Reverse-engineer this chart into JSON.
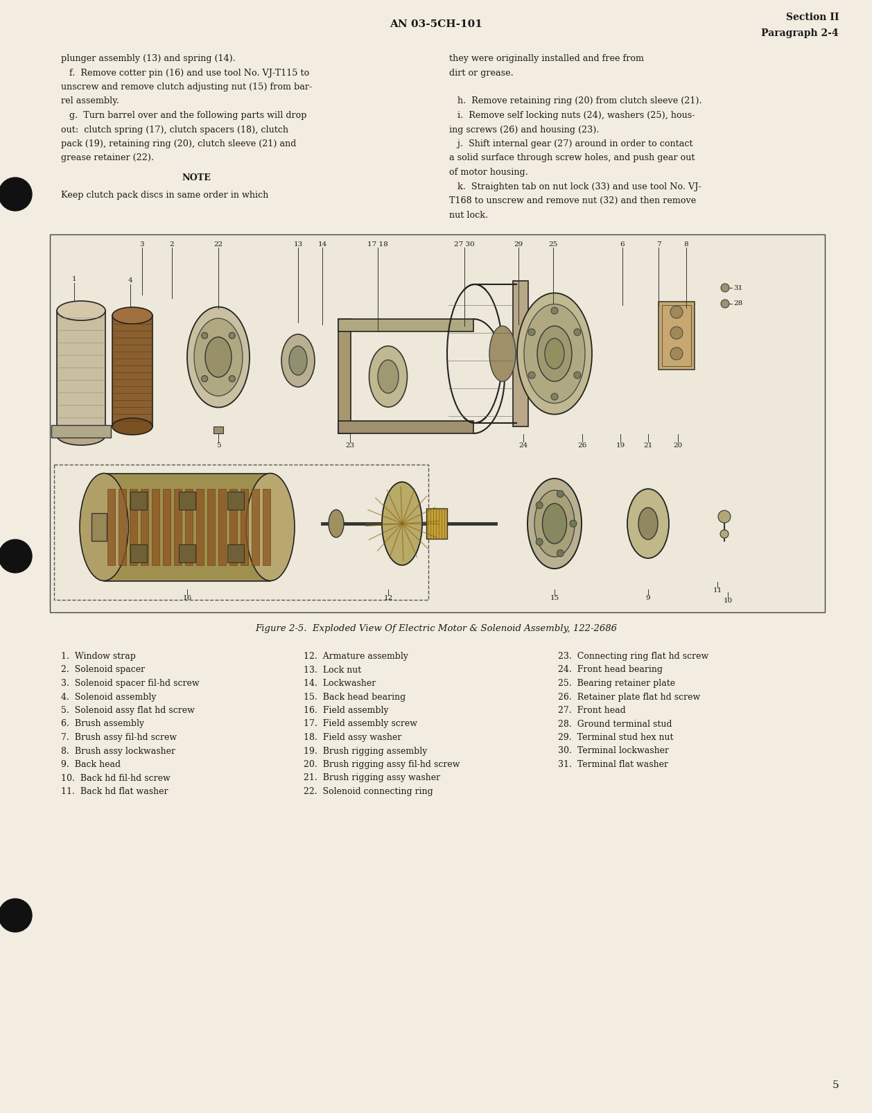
{
  "page_color": "#f2ede0",
  "header_center": "AN 03-5CH-101",
  "header_right_line1": "Section II",
  "header_right_line2": "Paragraph 2-4",
  "page_number": "5",
  "body_left_col": [
    "plunger assembly (13) and spring (14).",
    "   f.  Remove cotter pin (16) and use tool No. VJ-T115 to",
    "unscrew and remove clutch adjusting nut (15) from bar-",
    "rel assembly.",
    "   g.  Turn barrel over and the following parts will drop",
    "out:  clutch spring (17), clutch spacers (18), clutch",
    "pack (19), retaining ring (20), clutch sleeve (21) and",
    "grease retainer (22)."
  ],
  "body_note": "NOTE",
  "body_note_text": "Keep clutch pack discs in same order in which",
  "body_right_col": [
    "they were originally installed and free from",
    "dirt or grease.",
    "",
    "   h.  Remove retaining ring (20) from clutch sleeve (21).",
    "   i.  Remove self locking nuts (24), washers (25), hous-",
    "ing screws (26) and housing (23).",
    "   j.  Shift internal gear (27) around in order to contact",
    "a solid surface through screw holes, and push gear out",
    "of motor housing.",
    "   k.  Straighten tab on nut lock (33) and use tool No. VJ-",
    "T168 to unscrew and remove nut (32) and then remove",
    "nut lock."
  ],
  "figure_caption": "Figure 2-5.  Exploded View Of Electric Motor & Solenoid Assembly, 122-2686",
  "parts_list_col1": [
    "1.  Window strap",
    "2.  Solenoid spacer",
    "3.  Solenoid spacer fil-hd screw",
    "4.  Solenoid assembly",
    "5.  Solenoid assy flat hd screw",
    "6.  Brush assembly",
    "7.  Brush assy fil-hd screw",
    "8.  Brush assy lockwasher",
    "9.  Back head",
    "10.  Back hd fil-hd screw",
    "11.  Back hd flat washer"
  ],
  "parts_list_col2": [
    "12.  Armature assembly",
    "13.  Lock nut",
    "14.  Lockwasher",
    "15.  Back head bearing",
    "16.  Field assembly",
    "17.  Field assembly screw",
    "18.  Field assy washer",
    "19.  Brush rigging assembly",
    "20.  Brush rigging assy fil-hd screw",
    "21.  Brush rigging assy washer",
    "22.  Solenoid connecting ring"
  ],
  "parts_list_col3": [
    "23.  Connecting ring flat hd screw",
    "24.  Front head bearing",
    "25.  Bearing retainer plate",
    "26.  Retainer plate flat hd screw",
    "27.  Front head",
    "28.  Ground terminal stud",
    "29.  Terminal stud hex nut",
    "30.  Terminal lockwasher",
    "31.  Terminal flat washer"
  ]
}
